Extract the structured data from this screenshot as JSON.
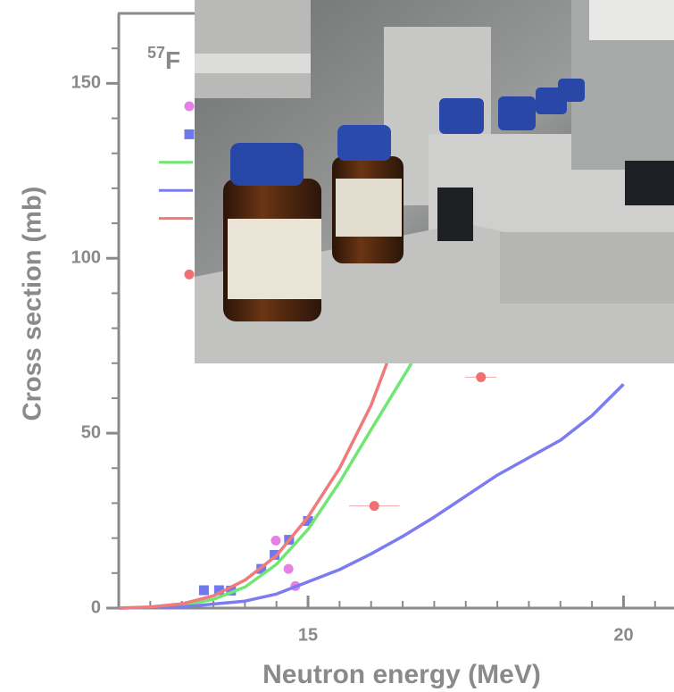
{
  "chart_data": {
    "type": "scatter",
    "title_superscript": "57",
    "title": "F",
    "x_label": "Neutron energy (MeV)",
    "y_label": "Cross section (mb)",
    "xlim": [
      12,
      20.8
    ],
    "ylim": [
      0,
      170
    ],
    "xticks": [
      15,
      20
    ],
    "yticks": [
      0,
      50,
      100,
      150
    ],
    "xminor": [
      12.5,
      13,
      13.5,
      14,
      14.5,
      15.5,
      16,
      16.5,
      17,
      17.5,
      18,
      18.5,
      19,
      19.5,
      20.5
    ],
    "yminor": [
      10,
      20,
      30,
      40,
      60,
      70,
      80,
      90,
      110,
      120,
      130,
      140,
      160
    ],
    "series": [
      {
        "style": "circle",
        "color": "#e67fe6",
        "x": [
          14.49,
          14.69,
          14.8
        ],
        "values": [
          19.3,
          11.2,
          6.3
        ]
      },
      {
        "style": "square",
        "color": "#6f78ee",
        "x": [
          13.35,
          13.59,
          13.78,
          14.26,
          14.47,
          14.7,
          15.0
        ],
        "values": [
          5.1,
          5.1,
          5,
          11.2,
          15.2,
          19.5,
          24.9
        ]
      },
      {
        "style": "line",
        "color": "#72e672",
        "x": [
          12,
          12.5,
          13,
          13.5,
          14,
          14.5,
          15,
          15.5,
          16,
          16.64
        ],
        "values": [
          0,
          0.2,
          0.8,
          2.5,
          6,
          12.5,
          22.5,
          36,
          51,
          70
        ]
      },
      {
        "style": "line",
        "color": "#7c7cf0",
        "x": [
          12,
          13,
          14,
          14.5,
          15,
          15.5,
          16,
          16.5,
          17,
          17.5,
          18,
          18.5,
          19,
          19.5,
          20
        ],
        "values": [
          0,
          0.3,
          2,
          4,
          7.5,
          11,
          15.5,
          20.5,
          26,
          32,
          38,
          43,
          48,
          55,
          64
        ]
      },
      {
        "style": "line",
        "color": "#f07a7a",
        "x": [
          12,
          12.5,
          13,
          13.5,
          14,
          14.5,
          15,
          15.5,
          16,
          16.25
        ],
        "values": [
          0,
          0.3,
          1.2,
          3.5,
          8,
          15,
          26,
          40,
          58,
          70
        ]
      },
      {
        "style": "circle",
        "color": "#ef7070",
        "x": [
          16.05,
          17.74
        ],
        "values": [
          29.2,
          66
        ],
        "xerr": [
          0.4,
          0.25
        ]
      }
    ]
  }
}
